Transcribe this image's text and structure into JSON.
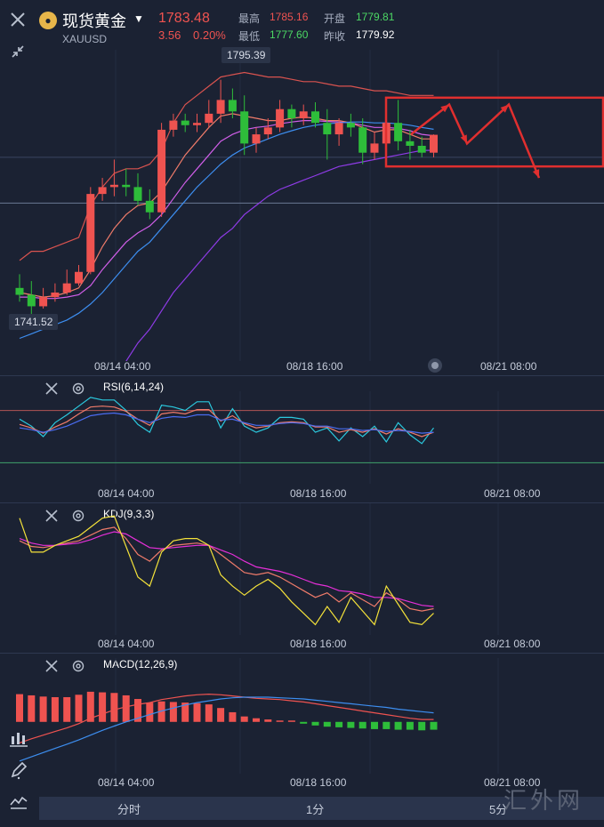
{
  "header": {
    "close_icon": "close-icon",
    "shrink_icon": "collapse-icon",
    "symbol_badge": "●",
    "name": "现货黄金",
    "code": "XAUUSD",
    "price": "1783.48",
    "change": "3.56",
    "change_pct": "0.20%",
    "high_label": "最高",
    "high_value": "1785.16",
    "low_label": "最低",
    "low_value": "1777.60",
    "open_label": "开盘",
    "open_value": "1779.81",
    "prev_close_label": "昨收",
    "prev_close_value": "1779.92"
  },
  "main_chart": {
    "max_tag": "1795.39",
    "min_tag": "1741.52",
    "time_labels": [
      "08/14 04:00",
      "08/18 16:00",
      "08/21 08:00"
    ]
  },
  "rsi_panel": {
    "title": "RSI(6,14,24)",
    "time_labels": [
      "08/14 04:00",
      "08/18 16:00",
      "08/21 08:00"
    ]
  },
  "kdj_panel": {
    "title": "KDJ(9,3,3)",
    "time_labels": [
      "08/14 04:00",
      "08/18 16:00",
      "08/21 08:00"
    ]
  },
  "macd_panel": {
    "title": "MACD(12,26,9)",
    "time_labels": [
      "08/14 04:00",
      "08/18 16:00",
      "08/21 08:00"
    ]
  },
  "bottom_tabs": [
    "分时",
    "1分",
    "5分"
  ],
  "watermark": "汇外网",
  "colors": {
    "background": "#1b2233",
    "up": "#ef5350",
    "down": "#2ebd3a",
    "ma_red": "#ef7b6a",
    "ma_blue": "#3d8ef0",
    "ma_purple": "#9b3ff0",
    "annotation": "#e02f2f"
  },
  "chart_data": {
    "type": "candlestick",
    "candles": [
      {
        "o": 1750.0,
        "h": 1753.0,
        "l": 1747.0,
        "c": 1748.5
      },
      {
        "o": 1748.5,
        "h": 1751.5,
        "l": 1743.0,
        "c": 1746.0
      },
      {
        "o": 1746.0,
        "h": 1750.0,
        "l": 1745.5,
        "c": 1748.0
      },
      {
        "o": 1748.0,
        "h": 1751.0,
        "l": 1747.0,
        "c": 1749.0
      },
      {
        "o": 1749.0,
        "h": 1754.0,
        "l": 1748.5,
        "c": 1751.0
      },
      {
        "o": 1751.0,
        "h": 1755.0,
        "l": 1750.5,
        "c": 1753.5
      },
      {
        "o": 1753.5,
        "h": 1772.0,
        "l": 1753.0,
        "c": 1770.5
      },
      {
        "o": 1770.5,
        "h": 1774.0,
        "l": 1769.0,
        "c": 1772.0
      },
      {
        "o": 1772.0,
        "h": 1778.0,
        "l": 1770.0,
        "c": 1772.5
      },
      {
        "o": 1772.5,
        "h": 1776.0,
        "l": 1770.0,
        "c": 1772.0
      },
      {
        "o": 1772.0,
        "h": 1775.0,
        "l": 1768.0,
        "c": 1769.0
      },
      {
        "o": 1769.0,
        "h": 1771.5,
        "l": 1765.0,
        "c": 1766.5
      },
      {
        "o": 1766.5,
        "h": 1786.0,
        "l": 1765.5,
        "c": 1784.5
      },
      {
        "o": 1784.5,
        "h": 1788.0,
        "l": 1783.0,
        "c": 1786.5
      },
      {
        "o": 1786.5,
        "h": 1788.0,
        "l": 1784.0,
        "c": 1785.5
      },
      {
        "o": 1785.5,
        "h": 1788.0,
        "l": 1784.0,
        "c": 1786.0
      },
      {
        "o": 1786.0,
        "h": 1791.0,
        "l": 1785.0,
        "c": 1788.0
      },
      {
        "o": 1788.0,
        "h": 1795.4,
        "l": 1786.0,
        "c": 1791.0
      },
      {
        "o": 1791.0,
        "h": 1793.5,
        "l": 1787.0,
        "c": 1788.5
      },
      {
        "o": 1788.5,
        "h": 1792.0,
        "l": 1779.0,
        "c": 1781.5
      },
      {
        "o": 1781.5,
        "h": 1785.0,
        "l": 1779.5,
        "c": 1783.5
      },
      {
        "o": 1783.5,
        "h": 1787.0,
        "l": 1782.5,
        "c": 1785.0
      },
      {
        "o": 1785.0,
        "h": 1791.0,
        "l": 1784.0,
        "c": 1789.0
      },
      {
        "o": 1789.0,
        "h": 1790.0,
        "l": 1785.0,
        "c": 1787.0
      },
      {
        "o": 1787.0,
        "h": 1790.0,
        "l": 1785.5,
        "c": 1788.5
      },
      {
        "o": 1788.5,
        "h": 1790.5,
        "l": 1785.0,
        "c": 1786.0
      },
      {
        "o": 1786.0,
        "h": 1789.0,
        "l": 1778.0,
        "c": 1783.5
      },
      {
        "o": 1783.5,
        "h": 1787.0,
        "l": 1781.0,
        "c": 1786.0
      },
      {
        "o": 1786.0,
        "h": 1788.0,
        "l": 1783.0,
        "c": 1785.0
      },
      {
        "o": 1785.0,
        "h": 1787.0,
        "l": 1777.0,
        "c": 1779.5
      },
      {
        "o": 1779.5,
        "h": 1784.0,
        "l": 1778.0,
        "c": 1781.5
      },
      {
        "o": 1781.5,
        "h": 1788.0,
        "l": 1780.0,
        "c": 1786.0
      },
      {
        "o": 1786.0,
        "h": 1791.0,
        "l": 1780.0,
        "c": 1782.0
      },
      {
        "o": 1782.0,
        "h": 1784.5,
        "l": 1778.0,
        "c": 1781.0
      },
      {
        "o": 1781.0,
        "h": 1783.0,
        "l": 1778.5,
        "c": 1779.5
      },
      {
        "o": 1779.5,
        "h": 1783.5,
        "l": 1778.5,
        "c": 1783.4
      }
    ],
    "ylim": [
      1736,
      1800
    ],
    "overlays": [
      {
        "name": "upper",
        "color": "#d9534f",
        "values": [
          1756,
          1758,
          1758,
          1759,
          1760,
          1761,
          1768,
          1772,
          1775,
          1776,
          1776,
          1777,
          1780,
          1786,
          1790,
          1792,
          1794,
          1796,
          1796.5,
          1797,
          1796.5,
          1796,
          1796,
          1795.5,
          1795,
          1795,
          1794.5,
          1794,
          1794,
          1793.5,
          1793,
          1793,
          1792.5,
          1792,
          1792,
          1792
        ]
      },
      {
        "name": "ma_fast",
        "color": "#ef7b6a",
        "values": [
          1749,
          1748.5,
          1748,
          1748.3,
          1749,
          1750,
          1754,
          1759,
          1763,
          1766,
          1768,
          1768.5,
          1771,
          1775,
          1779,
          1782,
          1785,
          1787.5,
          1788,
          1787.5,
          1787,
          1786.5,
          1786.5,
          1787,
          1787.3,
          1787,
          1786.5,
          1786.5,
          1786,
          1785,
          1784,
          1784.5,
          1784.5,
          1783.5,
          1782.5,
          1782.5
        ]
      },
      {
        "name": "ma_mid",
        "color": "#d05ee8",
        "values": [
          1748,
          1748,
          1747.7,
          1747.7,
          1748,
          1748.5,
          1750.5,
          1754,
          1757,
          1760,
          1762,
          1763.5,
          1766,
          1769.5,
          1773,
          1776,
          1779,
          1782,
          1783.5,
          1784.5,
          1785,
          1785.3,
          1785.8,
          1786.2,
          1786.5,
          1786.5,
          1786.3,
          1786.2,
          1786,
          1785.5,
          1785,
          1785,
          1784.8,
          1784.3,
          1783.5,
          1783.2
        ]
      },
      {
        "name": "ma_slow",
        "color": "#3d8ef0",
        "values": [
          1739,
          1740,
          1741,
          1742,
          1743,
          1744.5,
          1746.5,
          1749,
          1752,
          1755,
          1758,
          1760,
          1763,
          1766,
          1769,
          1772,
          1774.5,
          1777,
          1779,
          1780.5,
          1781.5,
          1782.5,
          1783.5,
          1784.3,
          1785,
          1785.5,
          1785.8,
          1786,
          1786.2,
          1786.2,
          1786,
          1786,
          1785.8,
          1785.5,
          1785,
          1784.6
        ]
      },
      {
        "name": "lower",
        "color": "#8e3be6",
        "values": [
          1715,
          1716,
          1717,
          1718,
          1720,
          1722,
          1724,
          1727,
          1730,
          1734,
          1738,
          1741,
          1745,
          1749,
          1752,
          1755,
          1758,
          1761,
          1763,
          1766,
          1768,
          1770,
          1771.5,
          1772.5,
          1773.5,
          1774.5,
          1775.5,
          1776.5,
          1777,
          1777.5,
          1778,
          1778.5,
          1779,
          1779.5,
          1780,
          1780
        ]
      }
    ],
    "rsi": {
      "ylim": [
        0,
        100
      ],
      "series": [
        {
          "name": "rsi6",
          "color": "#2bc9de",
          "values": [
            70,
            62,
            50,
            66,
            75,
            85,
            95,
            92,
            92,
            80,
            64,
            55,
            86,
            84,
            80,
            90,
            90,
            60,
            82,
            62,
            55,
            60,
            72,
            72,
            70,
            55,
            60,
            45,
            60,
            50,
            62,
            44,
            66,
            52,
            42,
            60
          ]
        },
        {
          "name": "rsi14",
          "color": "#ef7b6a",
          "values": [
            64,
            60,
            54,
            61,
            67,
            76,
            84,
            85,
            84,
            79,
            70,
            63,
            76,
            78,
            76,
            81,
            81,
            68,
            74,
            65,
            60,
            62,
            66,
            67,
            66,
            61,
            61,
            55,
            58,
            55,
            59,
            53,
            59,
            55,
            50,
            55
          ]
        },
        {
          "name": "rsi24",
          "color": "#4a6cf0",
          "values": [
            60,
            58,
            55,
            58,
            62,
            68,
            74,
            76,
            77,
            75,
            70,
            66,
            71,
            73,
            72,
            75,
            75,
            69,
            70,
            66,
            63,
            63,
            65,
            66,
            65,
            62,
            62,
            59,
            59,
            57,
            58,
            56,
            57,
            56,
            54,
            55
          ]
        }
      ]
    },
    "kdj": {
      "ylim": [
        0,
        110
      ],
      "series": [
        {
          "name": "K",
          "color": "#ef7b6a",
          "values": [
            80,
            75,
            74,
            76,
            78,
            80,
            85,
            90,
            92,
            82,
            68,
            62,
            72,
            76,
            77,
            78,
            76,
            68,
            60,
            52,
            50,
            52,
            48,
            42,
            36,
            30,
            34,
            26,
            34,
            28,
            22,
            34,
            28,
            20,
            18,
            20
          ]
        },
        {
          "name": "D",
          "color": "#e52fd8",
          "values": [
            82,
            78,
            76,
            76,
            77,
            78,
            81,
            85,
            88,
            86,
            80,
            74,
            73,
            74,
            75,
            76,
            76,
            72,
            68,
            62,
            57,
            55,
            53,
            50,
            46,
            42,
            40,
            36,
            35,
            33,
            30,
            30,
            29,
            26,
            23,
            22
          ]
        },
        {
          "name": "J",
          "color": "#f4e23a",
          "values": [
            100,
            70,
            70,
            76,
            80,
            84,
            92,
            100,
            102,
            75,
            48,
            40,
            70,
            80,
            82,
            82,
            76,
            50,
            40,
            32,
            40,
            46,
            38,
            26,
            16,
            6,
            22,
            8,
            30,
            18,
            6,
            40,
            24,
            8,
            6,
            16
          ]
        }
      ]
    },
    "macd": {
      "ylim": [
        -8,
        10
      ],
      "hist": [
        4.6,
        4.4,
        4.2,
        4.1,
        4.1,
        4.5,
        5.0,
        4.9,
        4.8,
        4.4,
        3.8,
        3.2,
        3.4,
        3.3,
        3.2,
        3.1,
        2.9,
        2.3,
        1.6,
        0.9,
        0.6,
        0.4,
        0.2,
        0,
        -0.3,
        -0.6,
        -0.8,
        -0.9,
        -1.0,
        -1.1,
        -1.2,
        -1.2,
        -1.3,
        -1.3,
        -1.4,
        -1.3
      ],
      "series": [
        {
          "name": "DIF",
          "color": "#ef5350",
          "values": [
            -3.5,
            -2.8,
            -2.2,
            -1.6,
            -1.0,
            -0.3,
            0.6,
            1.3,
            2.0,
            2.5,
            2.9,
            3.2,
            3.7,
            4.0,
            4.3,
            4.5,
            4.6,
            4.5,
            4.3,
            4.1,
            3.9,
            3.8,
            3.7,
            3.5,
            3.3,
            3.0,
            2.7,
            2.4,
            2.1,
            1.8,
            1.5,
            1.2,
            0.9,
            0.6,
            0.4,
            0.4
          ]
        },
        {
          "name": "DEA",
          "color": "#3d8ef0",
          "values": [
            -6.5,
            -5.8,
            -5.1,
            -4.4,
            -3.7,
            -3.0,
            -2.2,
            -1.4,
            -0.7,
            0.0,
            0.6,
            1.2,
            1.8,
            2.3,
            2.8,
            3.2,
            3.5,
            3.8,
            4.0,
            4.1,
            4.1,
            4.1,
            4.0,
            3.9,
            3.8,
            3.6,
            3.4,
            3.2,
            3.0,
            2.8,
            2.6,
            2.4,
            2.1,
            1.9,
            1.7,
            1.5
          ]
        }
      ]
    }
  }
}
